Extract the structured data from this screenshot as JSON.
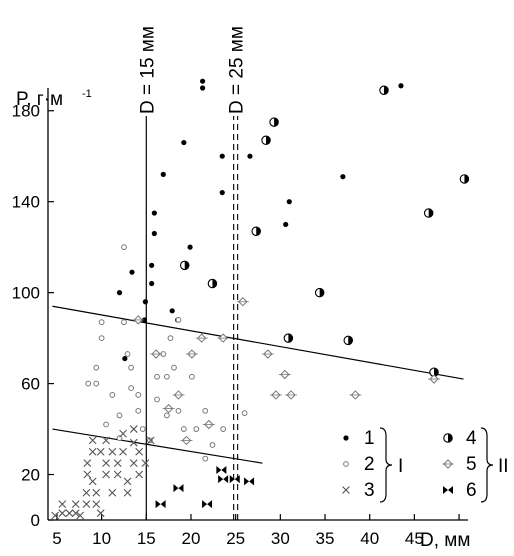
{
  "chart_data": {
    "type": "scatter",
    "title": "",
    "ylabel_text": "P, г·м",
    "ylabel_sup": "-1",
    "xlabel": "D, мм",
    "xlim": [
      4,
      51
    ],
    "ylim": [
      0,
      190
    ],
    "xticks": [
      5,
      10,
      15,
      20,
      25,
      30,
      35,
      40,
      45,
      50
    ],
    "yticks": [
      0,
      20,
      60,
      100,
      140,
      180
    ],
    "x_tick_labels": [
      "5",
      "10",
      "15",
      "20",
      "25",
      "30",
      "35",
      "40",
      "45"
    ],
    "y_tick_labels": [
      "0",
      "20",
      "60",
      "100",
      "140",
      "180"
    ],
    "grid": false,
    "vlines": [
      {
        "x": 15,
        "label": "D = 15 мм",
        "style": "solid"
      },
      {
        "x": 25,
        "label": "D = 25 мм",
        "style": "double-dashed"
      }
    ],
    "trend_lines": [
      {
        "name": "I",
        "x": [
          4.5,
          50.5
        ],
        "y": [
          94,
          62
        ]
      },
      {
        "name": "II",
        "x": [
          4.5,
          28
        ],
        "y": [
          40,
          25
        ]
      }
    ],
    "legend": {
      "placement": "bottom-right",
      "items": [
        "1",
        "2",
        "3",
        "4",
        "5",
        "6"
      ],
      "group_labels": [
        "I",
        "II"
      ]
    },
    "series": [
      {
        "name": "1",
        "marker": "filled-circle",
        "points": [
          [
            12.0,
            100
          ],
          [
            13.4,
            109
          ],
          [
            12.6,
            71
          ],
          [
            14.8,
            88
          ],
          [
            14.9,
            96
          ],
          [
            15.6,
            112
          ],
          [
            15.9,
            126
          ],
          [
            15.9,
            135
          ],
          [
            15.6,
            104
          ],
          [
            16.9,
            152
          ],
          [
            17.9,
            92
          ],
          [
            18.5,
            88
          ],
          [
            19.2,
            166
          ],
          [
            19.9,
            120
          ],
          [
            21.3,
            193
          ],
          [
            21.3,
            190
          ],
          [
            23.5,
            160
          ],
          [
            23.5,
            144
          ],
          [
            26.6,
            160
          ],
          [
            30.6,
            130
          ],
          [
            31.0,
            140
          ],
          [
            37.0,
            151
          ],
          [
            43.5,
            191
          ]
        ]
      },
      {
        "name": "2",
        "marker": "open-circle",
        "points": [
          [
            8.5,
            60
          ],
          [
            9.4,
            60
          ],
          [
            9.4,
            67
          ],
          [
            10.0,
            87
          ],
          [
            10.0,
            80
          ],
          [
            10.5,
            42
          ],
          [
            11.2,
            55
          ],
          [
            12.0,
            36
          ],
          [
            12.0,
            46
          ],
          [
            12.5,
            120
          ],
          [
            12.5,
            87
          ],
          [
            12.9,
            73
          ],
          [
            13.3,
            67
          ],
          [
            13.3,
            58
          ],
          [
            14.1,
            55
          ],
          [
            14.1,
            48
          ],
          [
            14.6,
            40
          ],
          [
            15.4,
            35
          ],
          [
            16.2,
            63
          ],
          [
            16.2,
            53
          ],
          [
            16.9,
            73
          ],
          [
            17.3,
            63
          ],
          [
            17.3,
            46
          ],
          [
            17.7,
            80
          ],
          [
            18.1,
            67
          ],
          [
            18.6,
            88
          ],
          [
            18.6,
            48
          ],
          [
            19.2,
            40
          ],
          [
            20.1,
            63
          ],
          [
            20.6,
            40
          ],
          [
            21.6,
            48
          ],
          [
            21.6,
            27
          ],
          [
            22.4,
            33
          ],
          [
            23.6,
            40
          ],
          [
            26.0,
            47
          ]
        ]
      },
      {
        "name": "3",
        "marker": "cross",
        "points": [
          [
            4.8,
            2
          ],
          [
            5.6,
            7
          ],
          [
            5.6,
            3
          ],
          [
            6.4,
            3
          ],
          [
            7.1,
            3
          ],
          [
            7.1,
            7
          ],
          [
            7.6,
            2
          ],
          [
            8.3,
            7
          ],
          [
            8.3,
            12
          ],
          [
            9.0,
            17
          ],
          [
            9.4,
            7
          ],
          [
            9.4,
            12
          ],
          [
            9.9,
            3
          ],
          [
            8.4,
            20
          ],
          [
            8.4,
            25
          ],
          [
            9.0,
            30
          ],
          [
            9.9,
            30
          ],
          [
            10.5,
            25
          ],
          [
            10.5,
            20
          ],
          [
            11.2,
            12
          ],
          [
            11.2,
            30
          ],
          [
            11.8,
            20
          ],
          [
            11.8,
            25
          ],
          [
            12.4,
            30
          ],
          [
            12.9,
            17
          ],
          [
            12.9,
            12
          ],
          [
            13.6,
            25
          ],
          [
            13.6,
            34
          ],
          [
            14.2,
            20
          ],
          [
            14.2,
            30
          ],
          [
            14.9,
            25
          ],
          [
            15.5,
            35
          ],
          [
            9.0,
            35
          ],
          [
            10.5,
            35
          ],
          [
            12.4,
            38
          ],
          [
            13.6,
            40
          ]
        ]
      },
      {
        "name": "4",
        "marker": "half-filled-circle",
        "points": [
          [
            19.3,
            112
          ],
          [
            22.4,
            104
          ],
          [
            27.3,
            127
          ],
          [
            28.4,
            167
          ],
          [
            29.3,
            175
          ],
          [
            30.9,
            80
          ],
          [
            34.4,
            100
          ],
          [
            37.6,
            79
          ],
          [
            41.6,
            189
          ],
          [
            46.6,
            135
          ],
          [
            50.6,
            150
          ],
          [
            47.2,
            65
          ]
        ]
      },
      {
        "name": "5",
        "marker": "open-diamond",
        "points": [
          [
            14.1,
            88
          ],
          [
            16.1,
            73
          ],
          [
            17.5,
            49
          ],
          [
            18.6,
            55
          ],
          [
            19.5,
            35
          ],
          [
            20.1,
            73
          ],
          [
            21.2,
            80
          ],
          [
            22.0,
            42
          ],
          [
            23.6,
            80
          ],
          [
            25.8,
            96
          ],
          [
            28.6,
            73
          ],
          [
            29.5,
            55
          ],
          [
            30.5,
            64
          ],
          [
            31.2,
            55
          ],
          [
            38.4,
            55
          ],
          [
            47.2,
            62
          ]
        ]
      },
      {
        "name": "6",
        "marker": "bowtie",
        "points": [
          [
            16.6,
            7
          ],
          [
            18.6,
            14
          ],
          [
            21.8,
            7
          ],
          [
            23.4,
            22
          ],
          [
            23.6,
            18
          ],
          [
            24.9,
            18
          ],
          [
            26.5,
            17
          ]
        ]
      }
    ]
  }
}
